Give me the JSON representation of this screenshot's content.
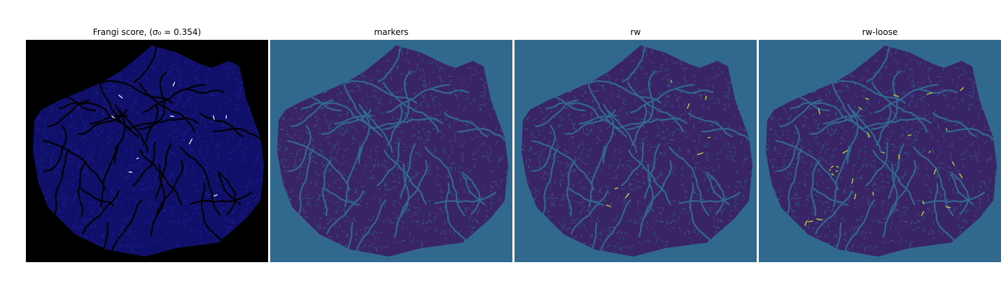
{
  "figure": {
    "panels": [
      {
        "id": "frangi",
        "title": "Frangi score, (σ₀ = 0.354)",
        "background": "#000000",
        "blob_fill": "#10106a",
        "vessel_color": "#000000",
        "mesh_color": "#2a2ab8",
        "highlight_color": "#e8e8ff"
      },
      {
        "id": "markers",
        "title": "markers",
        "background": "#31688e",
        "blob_fill": "#3a2468",
        "vessel_color": "#31688e",
        "mesh_color": "#31688e",
        "highlight_color": ""
      },
      {
        "id": "rw",
        "title": "rw",
        "background": "#31688e",
        "blob_fill": "#3a2468",
        "vessel_color": "#31688e",
        "mesh_color": "#31688e",
        "highlight_color": "#b5de2b"
      },
      {
        "id": "rw-loose",
        "title": "rw-loose",
        "background": "#31688e",
        "blob_fill": "#3a2468",
        "vessel_color": "#31688e",
        "mesh_color": "#31688e",
        "highlight_color": "#b5de2b"
      }
    ]
  }
}
